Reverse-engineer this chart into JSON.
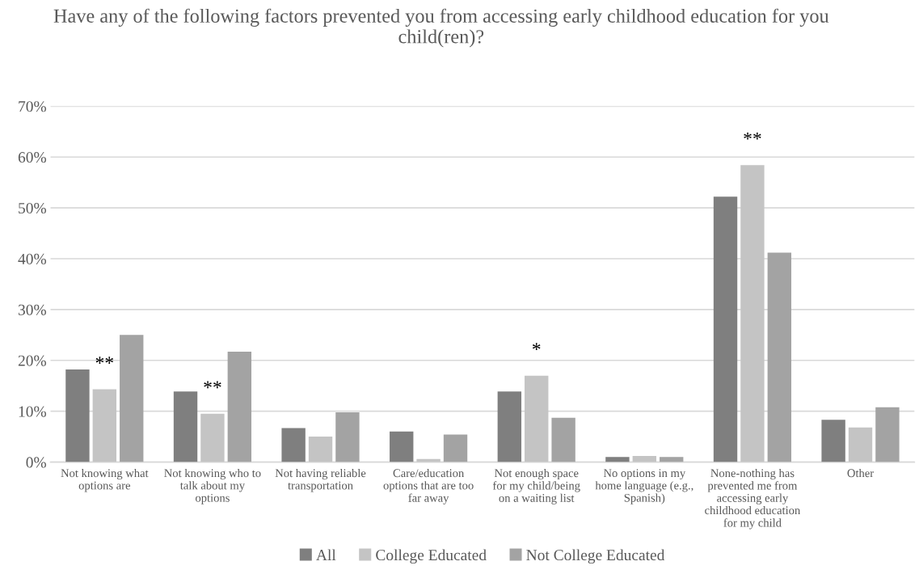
{
  "chart_data": {
    "type": "bar",
    "title": "Have any of the following factors prevented you from accessing early childhood education for you child(ren)?",
    "categories": [
      "Not knowing what\noptions are",
      "Not knowing who to\ntalk about my\noptions",
      "Not having reliable\ntransportation",
      "Care/education\noptions that are too\nfar away",
      "Not enough space\nfor my child/being\non a waiting list",
      "No options in my\nhome language (e.g.,\nSpanish)",
      "None-nothing has\nprevented me from\naccessing early\nchildhood education\nfor my child",
      "Other"
    ],
    "series": [
      {
        "name": "All",
        "color": "#7f7f7f",
        "values": [
          18.2,
          13.9,
          6.7,
          6.0,
          13.9,
          1.0,
          52.2,
          8.3
        ]
      },
      {
        "name": "College Educated",
        "color": "#c4c4c4",
        "values": [
          14.3,
          9.5,
          5.0,
          0.6,
          17.0,
          1.2,
          58.4,
          6.8
        ]
      },
      {
        "name": "Not College Educated",
        "color": "#a3a3a3",
        "values": [
          25.0,
          21.7,
          9.8,
          5.4,
          8.7,
          1.0,
          41.2,
          10.8
        ]
      }
    ],
    "ylim": [
      0,
      70
    ],
    "yticks": [
      {
        "value": 0,
        "label": "0%"
      },
      {
        "value": 10,
        "label": "10%"
      },
      {
        "value": 20,
        "label": "20%"
      },
      {
        "value": 30,
        "label": "30%"
      },
      {
        "value": 40,
        "label": "40%"
      },
      {
        "value": 50,
        "label": "50%"
      },
      {
        "value": 60,
        "label": "60%"
      },
      {
        "value": 70,
        "label": "70%"
      }
    ],
    "annotations": [
      {
        "text": "**",
        "x": "Not knowing what\noptions are",
        "y": 14.3
      },
      {
        "text": "**",
        "x": "Not knowing who to\ntalk about my\noptions",
        "y": 9.5
      },
      {
        "text": "*",
        "x": "Not enough space\nfor my child/being\non a waiting list",
        "y": 17.0
      },
      {
        "text": "**",
        "x": "None-nothing has\nprevented me from\naccessing early\nchildhood education\nfor my child",
        "y": 58.4
      }
    ],
    "grid": "y",
    "legend": "bottom"
  }
}
